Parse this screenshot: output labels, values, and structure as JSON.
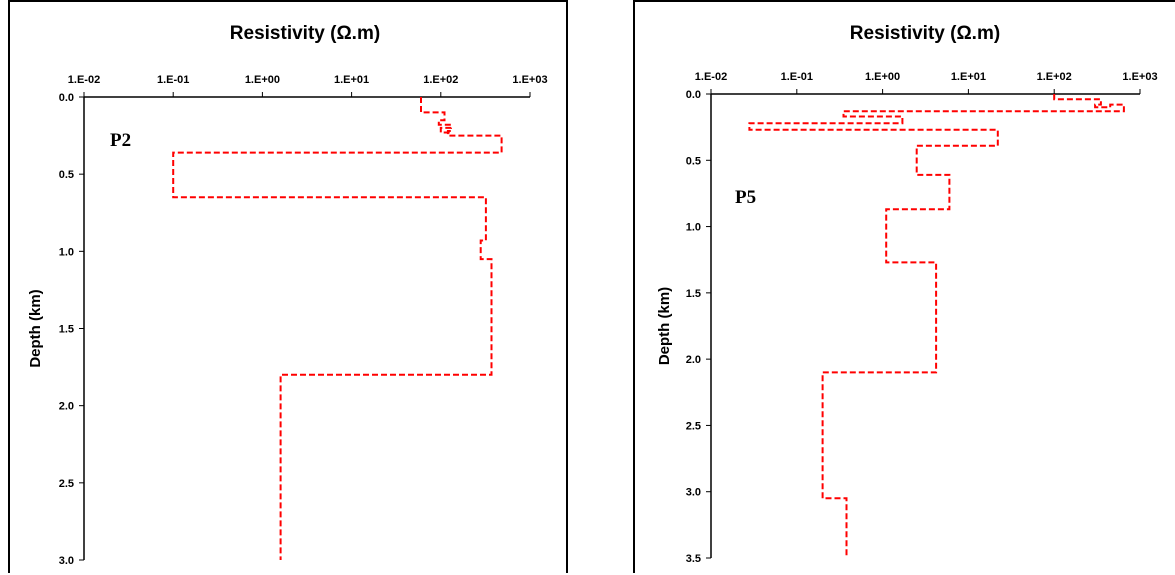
{
  "chart_data": [
    {
      "type": "line",
      "xlabel": "Resistivity (Ω.m)",
      "ylabel": "Depth (km)",
      "annotation": "P2",
      "x_scale": "log",
      "xlim": [
        0.01,
        1000
      ],
      "ylim": [
        0,
        3.0
      ],
      "y_inverted": true,
      "x_ticks": [
        "1.E-02",
        "1.E-01",
        "1.E+00",
        "1.E+01",
        "1.E+02",
        "1.E+03"
      ],
      "y_ticks": [
        "0.0",
        "0.5",
        "1.0",
        "1.5",
        "2.0",
        "2.5",
        "3.0"
      ],
      "series": [
        {
          "color": "#ff0000",
          "style": "dashed",
          "points": [
            [
              60,
              0
            ],
            [
              60,
              0.1
            ],
            [
              110,
              0.1
            ],
            [
              110,
              0.15
            ],
            [
              95,
              0.15
            ],
            [
              95,
              0.18
            ],
            [
              130,
              0.18
            ],
            [
              130,
              0.2
            ],
            [
              100,
              0.2
            ],
            [
              100,
              0.23
            ],
            [
              130,
              0.23
            ],
            [
              130,
              0.22
            ],
            [
              120,
              0.22
            ],
            [
              120,
              0.25
            ],
            [
              480,
              0.25
            ],
            [
              480,
              0.36
            ],
            [
              0.1,
              0.36
            ],
            [
              0.1,
              0.65
            ],
            [
              320,
              0.65
            ],
            [
              320,
              0.93
            ],
            [
              280,
              0.93
            ],
            [
              280,
              1.05
            ],
            [
              370,
              1.05
            ],
            [
              370,
              1.8
            ],
            [
              1.6,
              1.8
            ],
            [
              1.6,
              3.0
            ]
          ]
        }
      ]
    },
    {
      "type": "line",
      "xlabel": "Resistivity (Ω.m)",
      "ylabel": "Depth (km)",
      "annotation": "P5",
      "x_scale": "log",
      "xlim": [
        0.01,
        1000
      ],
      "ylim": [
        0,
        3.5
      ],
      "y_inverted": true,
      "x_ticks": [
        "1.E-02",
        "1.E-01",
        "1.E+00",
        "1.E+01",
        "1.E+02",
        "1.E+03"
      ],
      "y_ticks": [
        "0.0",
        "0.5",
        "1.0",
        "1.5",
        "2.0",
        "2.5",
        "3.0",
        "3.5"
      ],
      "series": [
        {
          "color": "#ff0000",
          "style": "dashed",
          "points": [
            [
              100,
              0
            ],
            [
              100,
              0.04
            ],
            [
              350,
              0.04
            ],
            [
              350,
              0.08
            ],
            [
              300,
              0.08
            ],
            [
              300,
              0.1
            ],
            [
              450,
              0.1
            ],
            [
              450,
              0.08
            ],
            [
              650,
              0.08
            ],
            [
              650,
              0.13
            ],
            [
              0.35,
              0.13
            ],
            [
              0.35,
              0.17
            ],
            [
              1.7,
              0.17
            ],
            [
              1.7,
              0.22
            ],
            [
              0.028,
              0.22
            ],
            [
              0.028,
              0.27
            ],
            [
              22,
              0.27
            ],
            [
              22,
              0.39
            ],
            [
              2.5,
              0.39
            ],
            [
              2.5,
              0.61
            ],
            [
              6,
              0.61
            ],
            [
              6,
              0.87
            ],
            [
              1.1,
              0.87
            ],
            [
              1.1,
              1.27
            ],
            [
              4.2,
              1.27
            ],
            [
              4.2,
              2.1
            ],
            [
              0.2,
              2.1
            ],
            [
              0.2,
              3.05
            ],
            [
              0.38,
              3.05
            ],
            [
              0.38,
              3.5
            ]
          ]
        }
      ]
    }
  ]
}
